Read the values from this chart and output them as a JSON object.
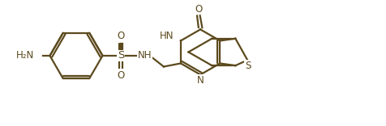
{
  "background": "#ffffff",
  "line_color": "#5c4a1e",
  "line_width": 1.6,
  "text_color": "#5c4a1e",
  "font_size": 8.5,
  "figsize": [
    4.77,
    1.56
  ],
  "dpi": 100,
  "xlim": [
    0.0,
    10.5
  ],
  "ylim": [
    0.2,
    3.5
  ]
}
